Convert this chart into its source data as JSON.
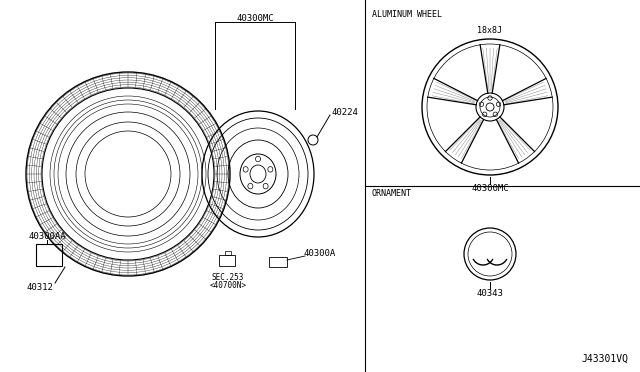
{
  "background_color": "#ffffff",
  "line_color": "#000000",
  "text_color": "#000000",
  "diagram_id": "J43301VQ",
  "left_panel": {
    "tire_label": "40312",
    "wheel_label": "40300MC",
    "valve_label": "40224",
    "balance_label": "40300A",
    "sec_label": "SEC.253\n<40700N>",
    "box_label": "40300AA"
  },
  "right_top": {
    "section_title": "ALUMINUM WHEEL",
    "size_label": "18x8J",
    "part_label": "40300MC"
  },
  "right_bottom": {
    "section_title": "ORNAMENT",
    "part_label": "40343"
  }
}
